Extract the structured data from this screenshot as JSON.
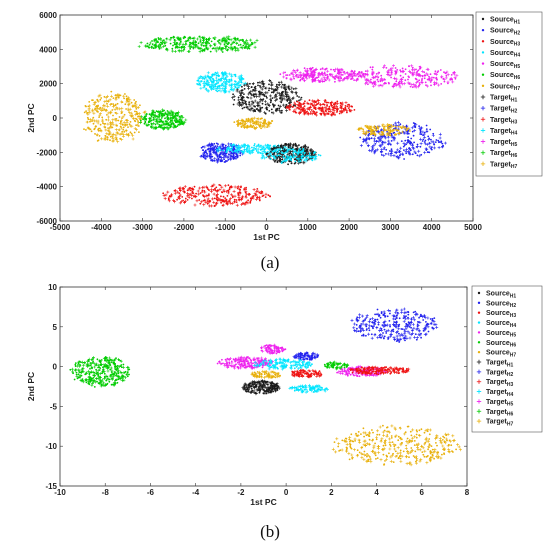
{
  "colors": {
    "H1": "#1a1a1a",
    "H2": "#2222ee",
    "H3": "#ee1111",
    "H4": "#00e5ff",
    "H5": "#ee22ee",
    "H6": "#00cc00",
    "H7": "#e8b00a"
  },
  "chart_data": [
    {
      "type": "scatter",
      "panel_label": "(a)",
      "xlabel": "1st PC",
      "ylabel": "2nd PC",
      "xlim": [
        -5000,
        5000
      ],
      "ylim": [
        -6000,
        6000
      ],
      "xticks": [
        -5000,
        -4000,
        -3000,
        -2000,
        -1000,
        0,
        1000,
        2000,
        3000,
        4000,
        5000
      ],
      "yticks": [
        -6000,
        -4000,
        -2000,
        0,
        2000,
        4000,
        6000
      ],
      "legend_position": "right",
      "legend": [
        {
          "base": "Source",
          "sub": "H1",
          "marker": "dot",
          "color_key": "H1"
        },
        {
          "base": "Source",
          "sub": "H2",
          "marker": "dot",
          "color_key": "H2"
        },
        {
          "base": "Source",
          "sub": "H3",
          "marker": "dot",
          "color_key": "H3"
        },
        {
          "base": "Source",
          "sub": "H4",
          "marker": "dot",
          "color_key": "H4"
        },
        {
          "base": "Source",
          "sub": "H5",
          "marker": "dot",
          "color_key": "H5"
        },
        {
          "base": "Source",
          "sub": "H6",
          "marker": "dot",
          "color_key": "H6"
        },
        {
          "base": "Source",
          "sub": "H7",
          "marker": "dot",
          "color_key": "H7"
        },
        {
          "base": "Target",
          "sub": "H1",
          "marker": "plus",
          "color_key": "H1"
        },
        {
          "base": "Target",
          "sub": "H2",
          "marker": "plus",
          "color_key": "H2"
        },
        {
          "base": "Target",
          "sub": "H3",
          "marker": "plus",
          "color_key": "H3"
        },
        {
          "base": "Target",
          "sub": "H4",
          "marker": "plus",
          "color_key": "H4"
        },
        {
          "base": "Target",
          "sub": "H5",
          "marker": "plus",
          "color_key": "H5"
        },
        {
          "base": "Target",
          "sub": "H6",
          "marker": "plus",
          "color_key": "H6"
        },
        {
          "base": "Target",
          "sub": "H7",
          "marker": "plus",
          "color_key": "H7"
        }
      ],
      "clusters": [
        {
          "color_key": "H6",
          "cx": -1600,
          "cy": 4300,
          "rx": 1550,
          "ry": 500,
          "n": 320,
          "domain": "mixed"
        },
        {
          "color_key": "H4",
          "cx": -1100,
          "cy": 2100,
          "rx": 650,
          "ry": 650,
          "n": 220,
          "domain": "mixed"
        },
        {
          "color_key": "H1",
          "cx": 0,
          "cy": 1200,
          "rx": 900,
          "ry": 1000,
          "n": 300,
          "domain": "mixed"
        },
        {
          "color_key": "H5",
          "cx": 1300,
          "cy": 2500,
          "rx": 1000,
          "ry": 450,
          "n": 220,
          "domain": "mixed"
        },
        {
          "color_key": "H5",
          "cx": 3300,
          "cy": 2400,
          "rx": 1400,
          "ry": 700,
          "n": 280,
          "domain": "mixed"
        },
        {
          "color_key": "H3",
          "cx": 1300,
          "cy": 600,
          "rx": 900,
          "ry": 480,
          "n": 230,
          "domain": "mixed"
        },
        {
          "color_key": "H7",
          "cx": -3700,
          "cy": 0,
          "rx": 800,
          "ry": 1600,
          "n": 330,
          "domain": "mixed"
        },
        {
          "color_key": "H6",
          "cx": -2500,
          "cy": -100,
          "rx": 600,
          "ry": 600,
          "n": 240,
          "domain": "mixed"
        },
        {
          "color_key": "H7",
          "cx": -300,
          "cy": -300,
          "rx": 500,
          "ry": 350,
          "n": 110,
          "domain": "mixed"
        },
        {
          "color_key": "H2",
          "cx": -1100,
          "cy": -2000,
          "rx": 550,
          "ry": 600,
          "n": 230,
          "domain": "mixed"
        },
        {
          "color_key": "H4",
          "cx": -300,
          "cy": -1800,
          "rx": 1000,
          "ry": 300,
          "n": 160,
          "domain": "mixed"
        },
        {
          "color_key": "H1",
          "cx": 600,
          "cy": -2100,
          "rx": 650,
          "ry": 650,
          "n": 260,
          "domain": "mixed"
        },
        {
          "color_key": "H4",
          "cx": 600,
          "cy": -2200,
          "rx": 800,
          "ry": 450,
          "n": 120,
          "domain": "mixed"
        },
        {
          "color_key": "H2",
          "cx": 3300,
          "cy": -1300,
          "rx": 1100,
          "ry": 1100,
          "n": 300,
          "domain": "mixed"
        },
        {
          "color_key": "H7",
          "cx": 2800,
          "cy": -700,
          "rx": 700,
          "ry": 350,
          "n": 120,
          "domain": "mixed"
        },
        {
          "color_key": "H3",
          "cx": -1200,
          "cy": -4500,
          "rx": 1400,
          "ry": 650,
          "n": 280,
          "domain": "mixed"
        }
      ]
    },
    {
      "type": "scatter",
      "panel_label": "(b)",
      "xlabel": "1st PC",
      "ylabel": "2nd PC",
      "xlim": [
        -10,
        8
      ],
      "ylim": [
        -15,
        10
      ],
      "xticks": [
        -10,
        -8,
        -6,
        -4,
        -2,
        0,
        2,
        4,
        6,
        8
      ],
      "yticks": [
        -15,
        -10,
        -5,
        0,
        5,
        10
      ],
      "legend_position": "right",
      "legend": [
        {
          "base": "Source",
          "sub": "H1",
          "marker": "dot",
          "color_key": "H1"
        },
        {
          "base": "Source",
          "sub": "H2",
          "marker": "dot",
          "color_key": "H2"
        },
        {
          "base": "Source",
          "sub": "H3",
          "marker": "dot",
          "color_key": "H3"
        },
        {
          "base": "Source",
          "sub": "H4",
          "marker": "dot",
          "color_key": "H4"
        },
        {
          "base": "Source",
          "sub": "H5",
          "marker": "dot",
          "color_key": "H5"
        },
        {
          "base": "Source",
          "sub": "H6",
          "marker": "dot",
          "color_key": "H6"
        },
        {
          "base": "Source",
          "sub": "H7",
          "marker": "dot",
          "color_key": "H7"
        },
        {
          "base": "Target",
          "sub": "H1",
          "marker": "plus",
          "color_key": "H1"
        },
        {
          "base": "Target",
          "sub": "H2",
          "marker": "plus",
          "color_key": "H2"
        },
        {
          "base": "Target",
          "sub": "H3",
          "marker": "plus",
          "color_key": "H3"
        },
        {
          "base": "Target",
          "sub": "H4",
          "marker": "plus",
          "color_key": "H4"
        },
        {
          "base": "Target",
          "sub": "H5",
          "marker": "plus",
          "color_key": "H5"
        },
        {
          "base": "Target",
          "sub": "H6",
          "marker": "plus",
          "color_key": "H6"
        },
        {
          "base": "Target",
          "sub": "H7",
          "marker": "plus",
          "color_key": "H7"
        }
      ],
      "clusters": [
        {
          "color_key": "H2",
          "cx": 4.8,
          "cy": 5.2,
          "rx": 2.0,
          "ry": 2.2,
          "n": 300,
          "domain": "mixed"
        },
        {
          "color_key": "H6",
          "cx": -8.2,
          "cy": -0.6,
          "rx": 1.4,
          "ry": 2.0,
          "n": 320,
          "domain": "mixed"
        },
        {
          "color_key": "H5",
          "cx": -1.8,
          "cy": 0.5,
          "rx": 1.3,
          "ry": 0.8,
          "n": 180,
          "domain": "mixed"
        },
        {
          "color_key": "H5",
          "cx": -0.6,
          "cy": 2.2,
          "rx": 0.6,
          "ry": 0.6,
          "n": 80,
          "domain": "mixed"
        },
        {
          "color_key": "H2",
          "cx": 0.9,
          "cy": 1.3,
          "rx": 0.6,
          "ry": 0.5,
          "n": 80,
          "domain": "mixed"
        },
        {
          "color_key": "H1",
          "cx": -1.1,
          "cy": -2.6,
          "rx": 0.9,
          "ry": 0.9,
          "n": 200,
          "domain": "mixed"
        },
        {
          "color_key": "H7",
          "cx": -0.9,
          "cy": -1.0,
          "rx": 0.7,
          "ry": 0.5,
          "n": 70,
          "domain": "mixed"
        },
        {
          "color_key": "H3",
          "cx": 0.9,
          "cy": -0.9,
          "rx": 0.8,
          "ry": 0.5,
          "n": 90,
          "domain": "mixed"
        },
        {
          "color_key": "H4",
          "cx": 1.0,
          "cy": -2.8,
          "rx": 0.9,
          "ry": 0.5,
          "n": 90,
          "domain": "mixed"
        },
        {
          "color_key": "H4",
          "cx": -0.1,
          "cy": 0.3,
          "rx": 1.4,
          "ry": 0.7,
          "n": 130,
          "domain": "mixed"
        },
        {
          "color_key": "H6",
          "cx": 2.2,
          "cy": 0.1,
          "rx": 0.6,
          "ry": 0.5,
          "n": 60,
          "domain": "mixed"
        },
        {
          "color_key": "H5",
          "cx": 3.3,
          "cy": -0.6,
          "rx": 1.2,
          "ry": 0.7,
          "n": 140,
          "domain": "mixed"
        },
        {
          "color_key": "H3",
          "cx": 4.1,
          "cy": -0.5,
          "rx": 1.5,
          "ry": 0.5,
          "n": 150,
          "domain": "mixed"
        },
        {
          "color_key": "H7",
          "cx": 4.9,
          "cy": -9.9,
          "rx": 3.0,
          "ry": 2.6,
          "n": 360,
          "domain": "mixed"
        }
      ]
    }
  ]
}
